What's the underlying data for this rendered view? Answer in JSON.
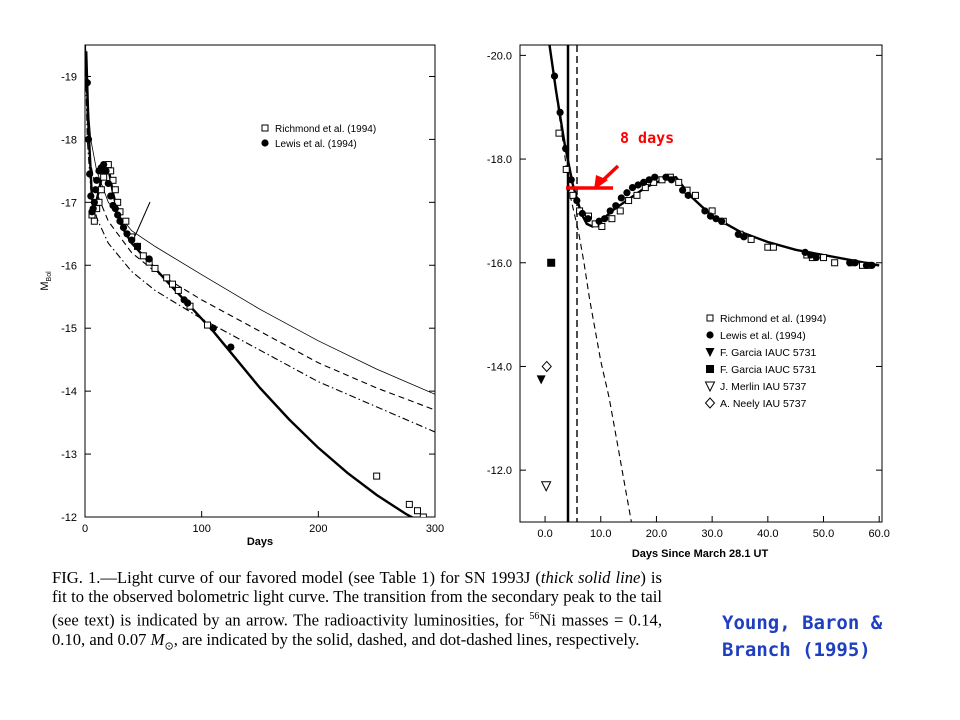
{
  "chart_data": [
    {
      "type": "line",
      "title": "",
      "xlabel": "Days",
      "ylabel": "M_Bol",
      "xlim": [
        0,
        300
      ],
      "ylim": [
        -12,
        -19.5
      ],
      "y_inverted": true,
      "x_ticks": [
        "0",
        "100",
        "200",
        "300"
      ],
      "y_ticks": [
        "-19",
        "-18",
        "-17",
        "-16",
        "-15",
        "-14",
        "-13",
        "-12"
      ],
      "grid": false,
      "legend_position": "top-right",
      "legend": [
        {
          "marker": "open-square",
          "label": "Richmond et al. (1994)"
        },
        {
          "marker": "filled-circle",
          "label": "Lewis et al. (1994)"
        }
      ],
      "series": [
        {
          "marker": "open-square",
          "x": [
            6,
            8,
            10,
            12,
            14,
            16,
            18,
            20,
            22,
            24,
            26,
            28,
            30,
            35,
            40,
            45,
            50,
            55,
            60,
            70,
            75,
            80,
            90,
            105,
            250,
            278,
            285,
            290
          ],
          "y": [
            -16.8,
            -16.7,
            -16.9,
            -17.0,
            -17.2,
            -17.4,
            -17.5,
            -17.6,
            -17.5,
            -17.35,
            -17.2,
            -17.0,
            -16.85,
            -16.7,
            -16.45,
            -16.3,
            -16.15,
            -16.05,
            -15.95,
            -15.8,
            -15.7,
            -15.6,
            -15.35,
            -15.05,
            -12.65,
            -12.2,
            -12.1,
            -12.0
          ]
        },
        {
          "marker": "filled-circle",
          "x": [
            2,
            3,
            4,
            5,
            6,
            7,
            8,
            9,
            10,
            12,
            14,
            16,
            18,
            20,
            22,
            24,
            26,
            28,
            30,
            33,
            36,
            40,
            45,
            55,
            85,
            88,
            110,
            125
          ],
          "y": [
            -18.9,
            -18.0,
            -17.45,
            -17.1,
            -16.85,
            -16.9,
            -17.0,
            -17.2,
            -17.35,
            -17.5,
            -17.55,
            -17.6,
            -17.5,
            -17.3,
            -17.1,
            -16.95,
            -16.9,
            -16.8,
            -16.7,
            -16.6,
            -16.5,
            -16.4,
            -16.3,
            -16.1,
            -15.45,
            -15.4,
            -15.0,
            -14.7
          ]
        },
        {
          "name": "",
          "style": "thick-solid",
          "x": [
            1,
            3,
            6,
            9,
            12,
            15,
            18,
            21,
            24,
            28,
            32,
            40,
            50,
            60,
            75,
            90,
            110,
            130,
            150,
            175,
            200,
            225,
            250,
            275,
            300
          ],
          "y": [
            -19.4,
            -18.2,
            -17.05,
            -16.95,
            -17.2,
            -17.45,
            -17.6,
            -17.45,
            -17.15,
            -16.85,
            -16.6,
            -16.35,
            -16.15,
            -15.95,
            -15.65,
            -15.35,
            -14.95,
            -14.5,
            -14.05,
            -13.55,
            -13.1,
            -12.7,
            -12.35,
            -12.05,
            -11.8
          ]
        },
        {
          "name": "",
          "style": "thin-solid",
          "x": [
            0.5,
            2,
            5,
            10,
            20,
            40,
            60,
            100,
            150,
            200,
            250,
            300
          ],
          "y": [
            -19.5,
            -18.7,
            -18.0,
            -17.5,
            -17.0,
            -16.55,
            -16.3,
            -15.85,
            -15.3,
            -14.8,
            -14.35,
            -13.95
          ]
        },
        {
          "name": "",
          "style": "dashed",
          "x": [
            0.5,
            2,
            5,
            10,
            20,
            40,
            60,
            100,
            150,
            200,
            250,
            300
          ],
          "y": [
            -19.3,
            -18.3,
            -17.6,
            -17.15,
            -16.7,
            -16.2,
            -15.9,
            -15.45,
            -14.95,
            -14.45,
            -14.05,
            -13.7
          ]
        },
        {
          "name": "",
          "style": "dot-dashed",
          "x": [
            0.5,
            2,
            5,
            10,
            20,
            40,
            60,
            100,
            150,
            200,
            250,
            300
          ],
          "y": [
            -19.1,
            -18.0,
            -17.2,
            -16.75,
            -16.35,
            -15.9,
            -15.6,
            -15.15,
            -14.65,
            -14.15,
            -13.75,
            -13.35
          ]
        }
      ]
    },
    {
      "type": "line",
      "title": "",
      "xlabel": "Days Since March 28.1 UT",
      "ylabel": "",
      "xlim": [
        -4.5,
        60.5
      ],
      "ylim": [
        -11,
        -20.2
      ],
      "y_inverted": true,
      "x_ticks": [
        "0.0",
        "10.0",
        "20.0",
        "30.0",
        "40.0",
        "50.0",
        "60.0"
      ],
      "y_ticks": [
        "-20.0",
        "-18.0",
        "-16.0",
        "-14.0",
        "-12.0"
      ],
      "grid": false,
      "legend_position": "right",
      "legend": [
        {
          "marker": "open-square",
          "label": "Richmond et al. (1994)"
        },
        {
          "marker": "filled-circle",
          "label": "Lewis et al. (1994)"
        },
        {
          "marker": "filled-triangle-down",
          "label": "F. Garcia IAUC 5731"
        },
        {
          "marker": "filled-square",
          "label": "F. Garcia IAUC 5731"
        },
        {
          "marker": "open-triangle-down",
          "label": "J. Merlin IAU 5737"
        },
        {
          "marker": "open-diamond",
          "label": "A. Neely IAU 5737"
        }
      ],
      "annotation": {
        "text": "8 days",
        "color": "#ff0000"
      },
      "series": [
        {
          "marker": "open-square",
          "x": [
            2.5,
            3.8,
            5,
            6.2,
            7.8,
            9,
            10.2,
            12,
            13.5,
            15,
            16.5,
            18,
            19.5,
            21,
            22.5,
            24,
            25.5,
            27,
            30,
            32,
            35,
            37,
            40,
            41,
            47,
            48,
            50,
            52,
            55,
            57,
            58
          ],
          "y": [
            -18.5,
            -17.8,
            -17.3,
            -17.0,
            -16.9,
            -16.75,
            -16.7,
            -16.85,
            -17.0,
            -17.2,
            -17.3,
            -17.45,
            -17.55,
            -17.6,
            -17.65,
            -17.55,
            -17.4,
            -17.3,
            -17.0,
            -16.8,
            -16.55,
            -16.45,
            -16.3,
            -16.3,
            -16.15,
            -16.1,
            -16.1,
            -16.0,
            -16.0,
            -15.95,
            -15.95
          ]
        },
        {
          "marker": "filled-circle",
          "x": [
            1.7,
            2.7,
            3.7,
            4.7,
            5.7,
            6.7,
            7.7,
            9.7,
            10.7,
            11.7,
            12.7,
            13.7,
            14.7,
            15.7,
            16.7,
            17.7,
            18.7,
            19.7,
            21.7,
            22.7,
            24.7,
            25.7,
            28.7,
            29.7,
            30.7,
            31.7,
            34.7,
            35.7,
            46.7,
            47.7,
            48.7,
            54.7,
            55.7,
            57.7,
            58.7
          ],
          "y": [
            -19.6,
            -18.9,
            -18.2,
            -17.6,
            -17.2,
            -16.95,
            -16.85,
            -16.8,
            -16.85,
            -17.0,
            -17.1,
            -17.25,
            -17.35,
            -17.45,
            -17.5,
            -17.55,
            -17.6,
            -17.65,
            -17.65,
            -17.6,
            -17.4,
            -17.3,
            -17.0,
            -16.9,
            -16.85,
            -16.8,
            -16.55,
            -16.5,
            -16.2,
            -16.15,
            -16.1,
            -16.0,
            -16.0,
            -15.95,
            -15.95
          ]
        },
        {
          "marker": "filled-triangle-down",
          "x": [
            -0.7
          ],
          "y": [
            -13.75
          ]
        },
        {
          "marker": "filled-square",
          "x": [
            1.1
          ],
          "y": [
            -16.0
          ]
        },
        {
          "marker": "open-triangle-down",
          "x": [
            0.2
          ],
          "y": [
            -11.7
          ]
        },
        {
          "marker": "open-diamond",
          "x": [
            0.3
          ],
          "y": [
            -14.0
          ]
        },
        {
          "name": "",
          "style": "thick-solid",
          "x": [
            0.8,
            2,
            3.5,
            5,
            6.5,
            7.5,
            8.5,
            10,
            12,
            14,
            16,
            18,
            20,
            22,
            23.5,
            26,
            30,
            35,
            40,
            45,
            50,
            55,
            60
          ],
          "y": [
            -20.2,
            -19.3,
            -18.3,
            -17.5,
            -16.95,
            -16.75,
            -16.7,
            -16.8,
            -17.0,
            -17.15,
            -17.3,
            -17.45,
            -17.55,
            -17.62,
            -17.65,
            -17.3,
            -16.9,
            -16.6,
            -16.4,
            -16.25,
            -16.15,
            -16.05,
            -15.95
          ]
        },
        {
          "name": "",
          "style": "dashed",
          "x": [
            1.5,
            3,
            4.5,
            6,
            7,
            8,
            9,
            10,
            11.5,
            13,
            14.5,
            15.5
          ],
          "y": [
            -19.6,
            -18.5,
            -17.3,
            -16.6,
            -16.0,
            -15.3,
            -14.7,
            -14.1,
            -13.4,
            -12.5,
            -11.6,
            -11.0
          ]
        }
      ]
    }
  ],
  "left_chart": {
    "ylabel_main": "M",
    "ylabel_sub": "Bol"
  },
  "caption": {
    "fig_label": "FIG.",
    "fig_number": "1.",
    "text_1": "—Light curve of our favored model (see Table 1) for SN 1993J (",
    "em_1": "thick solid line",
    "text_2": ") is fit to the observed bolometric light curve. The transition from the secondary peak to the tail (see text) is indicated by an arrow. The radioactivity luminosities, for ",
    "isotope_mass": "56",
    "isotope": "Ni",
    "text_3": " masses = 0.14, 0.10, and 0.07 ",
    "mass_symbol": "M",
    "sun_symbol": "⊙",
    "text_4": ", are indicated by the solid, dashed, and dot-dashed lines, respectively."
  },
  "credit": {
    "line1": "Young, Baron &",
    "line2": "Branch (1995)"
  },
  "colors": {
    "annotation": "#ff0000",
    "credit": "#1f3fbf"
  }
}
